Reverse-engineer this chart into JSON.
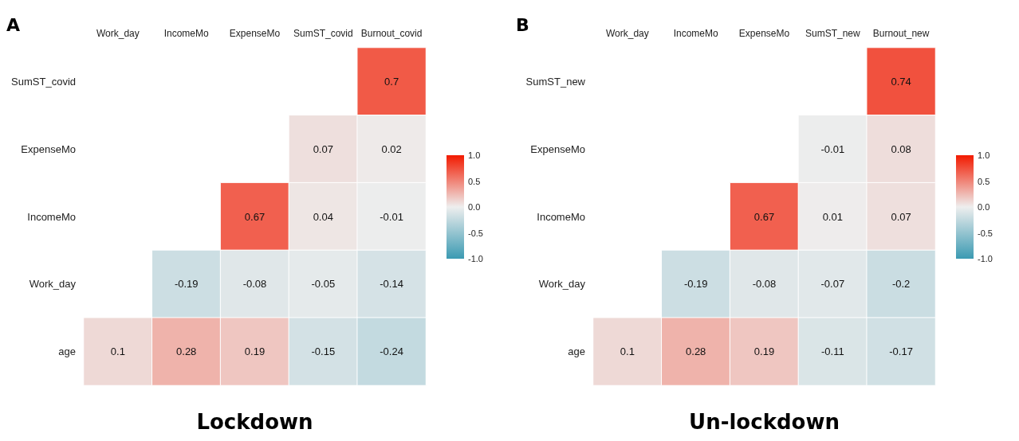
{
  "chart_data": [
    {
      "type": "heatmap",
      "title": "Lockdown",
      "annotations": [
        "A"
      ],
      "categories": [
        "Work_day",
        "IncomeMo",
        "ExpenseMo",
        "SumST_covid",
        "Burnout_covid"
      ],
      "y_categories": [
        "SumST_covid",
        "ExpenseMo",
        "IncomeMo",
        "Work_day",
        "age"
      ],
      "cells": [
        [
          null,
          null,
          null,
          null,
          0.7
        ],
        [
          null,
          null,
          null,
          0.07,
          0.02
        ],
        [
          null,
          null,
          0.67,
          0.04,
          -0.01
        ],
        [
          null,
          -0.19,
          -0.08,
          -0.05,
          -0.14
        ],
        [
          0.1,
          0.28,
          0.19,
          -0.15,
          -0.24
        ]
      ],
      "data_labels": true,
      "clim": [
        -1,
        1
      ],
      "cticks": [
        {
          "value": 1,
          "label": "1.0"
        },
        {
          "value": 0.5,
          "label": "0.5"
        },
        {
          "value": 0,
          "label": "0.0"
        },
        {
          "value": -0.5,
          "label": "-0.5"
        },
        {
          "value": -1,
          "label": "-1.0"
        }
      ]
    },
    {
      "type": "heatmap",
      "title": "Un-lockdown",
      "annotations": [
        "B"
      ],
      "categories": [
        "Work_day",
        "IncomeMo",
        "ExpenseMo",
        "SumST_new",
        "Burnout_new"
      ],
      "y_categories": [
        "SumST_new",
        "ExpenseMo",
        "IncomeMo",
        "Work_day",
        "age"
      ],
      "cells": [
        [
          null,
          null,
          null,
          null,
          0.74
        ],
        [
          null,
          null,
          null,
          -0.01,
          0.08
        ],
        [
          null,
          null,
          0.67,
          0.01,
          0.07
        ],
        [
          null,
          -0.19,
          -0.08,
          -0.07,
          -0.2
        ],
        [
          0.1,
          0.28,
          0.19,
          -0.11,
          -0.17
        ]
      ],
      "data_labels": true,
      "clim": [
        -1,
        1
      ],
      "cticks": [
        {
          "value": 1,
          "label": "1.0"
        },
        {
          "value": 0.5,
          "label": "0.5"
        },
        {
          "value": 0,
          "label": "0.0"
        },
        {
          "value": -0.5,
          "label": "-0.5"
        },
        {
          "value": -1,
          "label": "-1.0"
        }
      ]
    }
  ]
}
